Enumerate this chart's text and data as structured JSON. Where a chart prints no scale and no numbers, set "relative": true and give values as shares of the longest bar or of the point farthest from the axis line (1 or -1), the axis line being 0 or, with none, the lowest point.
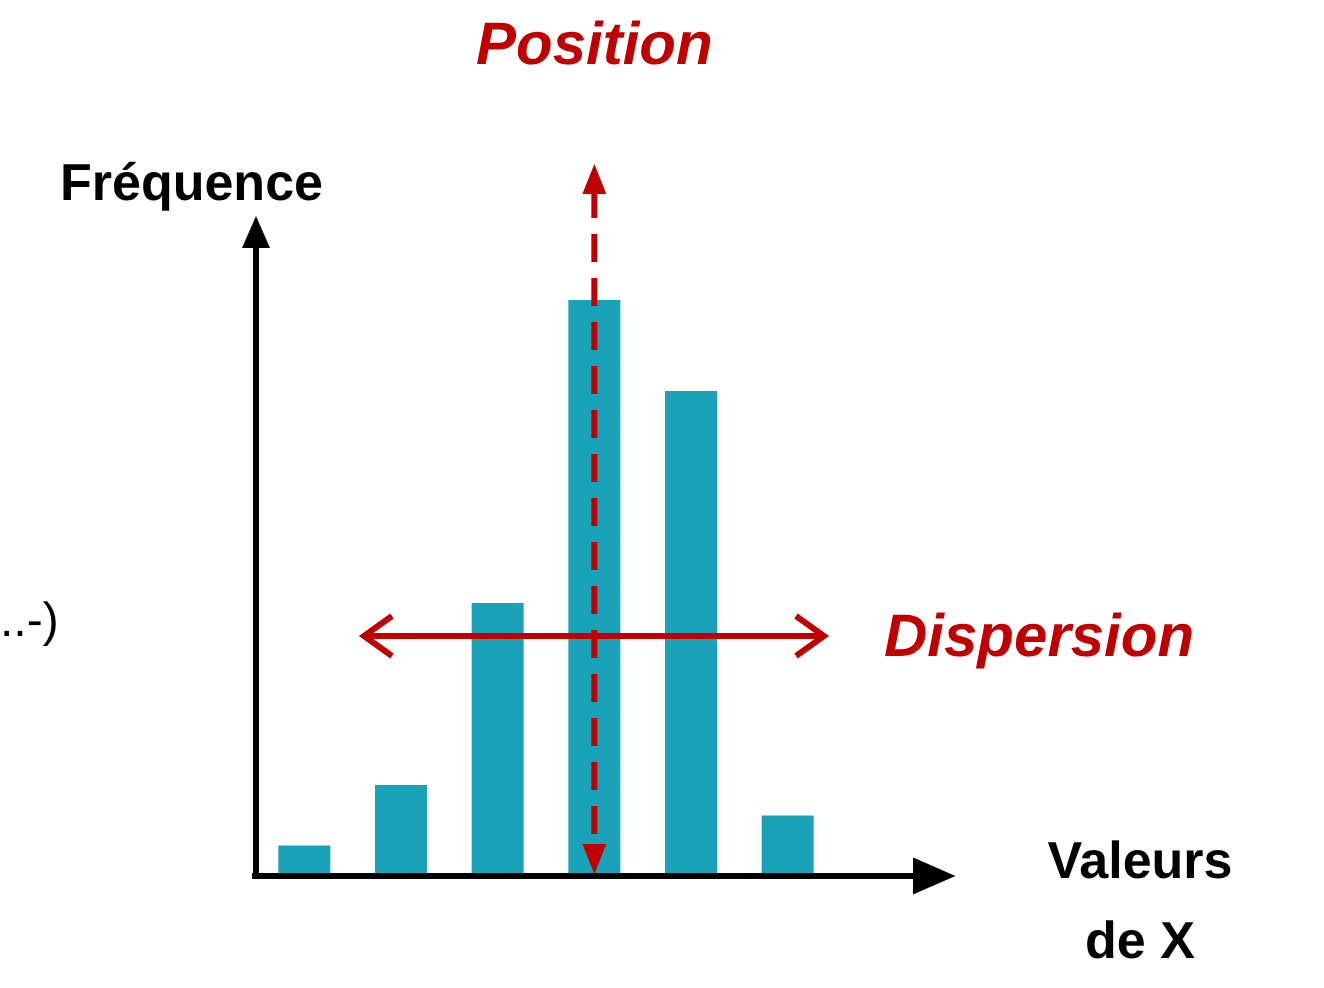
{
  "chart_data": {
    "type": "bar",
    "relative": true,
    "categories": [
      null,
      null,
      null,
      null,
      null,
      null
    ],
    "values": [
      0.053,
      0.158,
      0.474,
      1,
      0.842,
      0.105
    ],
    "color": "#1aa3b8",
    "xlabel": "Valeurs de X",
    "ylabel": "Fréquence",
    "annotations": [
      "Position",
      "Dispersion",
      "..-)"
    ]
  }
}
